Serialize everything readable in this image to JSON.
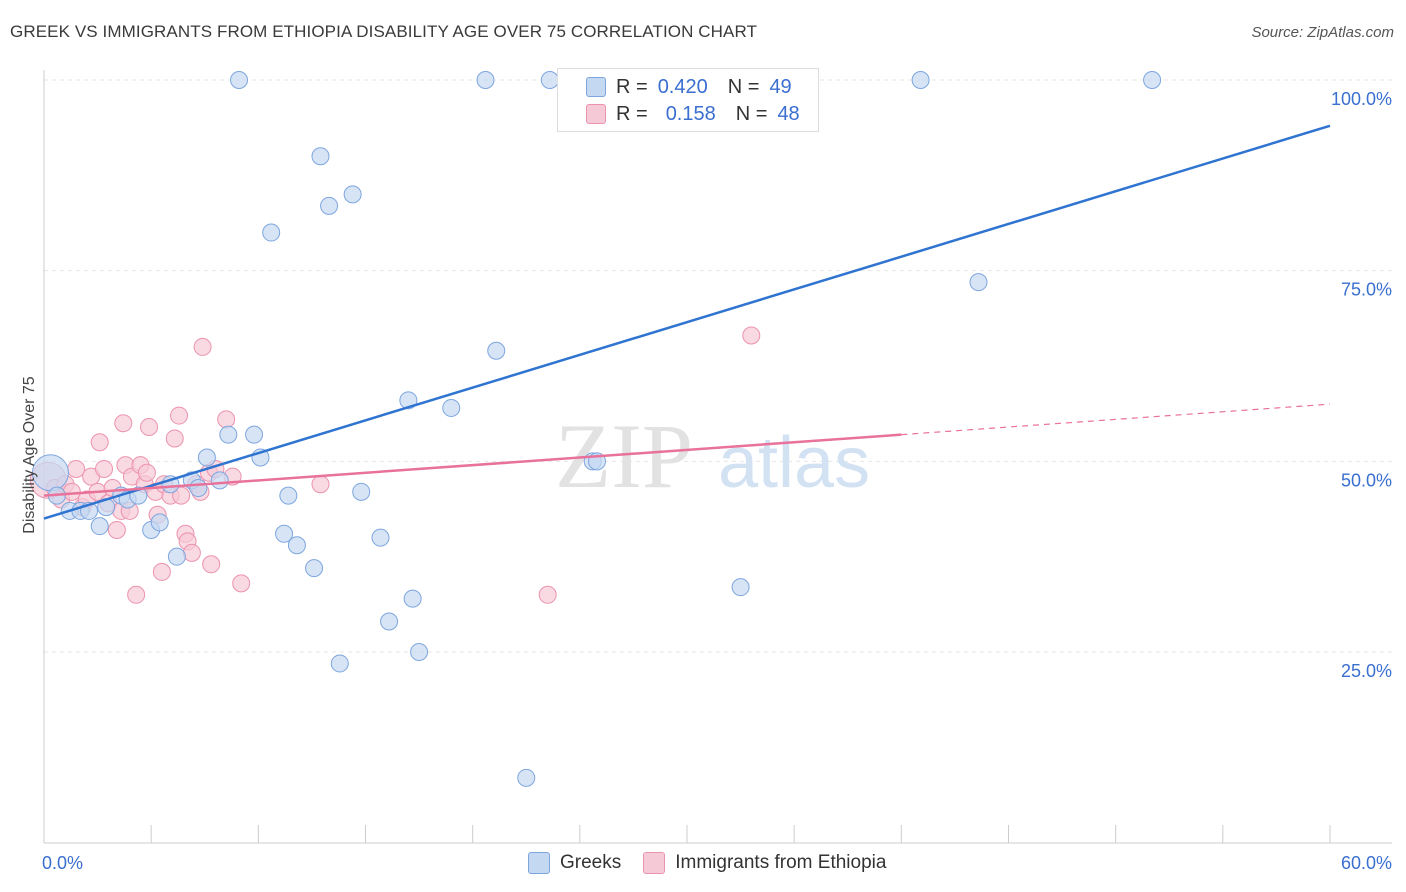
{
  "title": "GREEK VS IMMIGRANTS FROM ETHIOPIA DISABILITY AGE OVER 75 CORRELATION CHART",
  "source": "Source: ZipAtlas.com",
  "watermark": {
    "zip": "ZIP",
    "atlas": "atlas"
  },
  "colors": {
    "blue_fill": "#c5d8f2",
    "blue_stroke": "#7ea6de",
    "blue_line": "#2f74d0",
    "pink_fill": "#f6c9d6",
    "pink_stroke": "#ec93ae",
    "pink_line": "#e8729a",
    "axis_label": "#3a6fd0",
    "grid": "#e6e6e6"
  },
  "legend": {
    "greeks": {
      "r_label": "R =",
      "r_value": "0.420",
      "n_label": "N =",
      "n_value": "49"
    },
    "ethiopia": {
      "r_label": "R =",
      "r_value": "0.158",
      "n_label": "N =",
      "n_value": "48"
    }
  },
  "bottom_legend": {
    "greeks": "Greeks",
    "ethiopia": "Immigrants from Ethiopia"
  },
  "chart_data": {
    "type": "scatter",
    "title": "GREEK VS IMMIGRANTS FROM ETHIOPIA DISABILITY AGE OVER 75 CORRELATION CHART",
    "xlabel": "",
    "ylabel": "Disability Age Over 75",
    "xlim": [
      0,
      60
    ],
    "ylim": [
      0,
      105
    ],
    "x_tick_labels": [
      "0.0%",
      "60.0%"
    ],
    "y_ticks": [
      25,
      50,
      75,
      100
    ],
    "y_tick_labels": [
      "25.0%",
      "50.0%",
      "75.0%",
      "100.0%"
    ],
    "grid": true,
    "legend_position": "top-center",
    "series": [
      {
        "name": "Greeks",
        "r": 0.42,
        "n": 49,
        "trend": {
          "x": [
            0,
            60
          ],
          "y": [
            42.5,
            94.0
          ]
        },
        "points": [
          {
            "x": 0.3,
            "y": 48.5,
            "big": true
          },
          {
            "x": 0.6,
            "y": 45.5
          },
          {
            "x": 1.2,
            "y": 43.5
          },
          {
            "x": 1.7,
            "y": 43.5
          },
          {
            "x": 2.1,
            "y": 43.5
          },
          {
            "x": 2.6,
            "y": 41.5
          },
          {
            "x": 2.9,
            "y": 44.0
          },
          {
            "x": 3.6,
            "y": 45.5
          },
          {
            "x": 3.9,
            "y": 45.0
          },
          {
            "x": 4.4,
            "y": 45.5
          },
          {
            "x": 5.0,
            "y": 41.0
          },
          {
            "x": 5.4,
            "y": 42.0
          },
          {
            "x": 5.9,
            "y": 47.0
          },
          {
            "x": 6.2,
            "y": 37.5
          },
          {
            "x": 6.9,
            "y": 47.5
          },
          {
            "x": 7.2,
            "y": 46.5
          },
          {
            "x": 7.6,
            "y": 50.5
          },
          {
            "x": 8.2,
            "y": 47.5
          },
          {
            "x": 8.6,
            "y": 53.5
          },
          {
            "x": 9.1,
            "y": 100
          },
          {
            "x": 9.8,
            "y": 53.5
          },
          {
            "x": 10.1,
            "y": 50.5
          },
          {
            "x": 10.6,
            "y": 80.0
          },
          {
            "x": 11.4,
            "y": 45.5
          },
          {
            "x": 11.2,
            "y": 40.5
          },
          {
            "x": 11.8,
            "y": 39.0
          },
          {
            "x": 12.6,
            "y": 36.0
          },
          {
            "x": 12.9,
            "y": 90.0
          },
          {
            "x": 13.3,
            "y": 83.5
          },
          {
            "x": 13.8,
            "y": 23.5
          },
          {
            "x": 14.4,
            "y": 85.0
          },
          {
            "x": 14.8,
            "y": 46.0
          },
          {
            "x": 15.7,
            "y": 40.0
          },
          {
            "x": 16.1,
            "y": 29.0
          },
          {
            "x": 17.2,
            "y": 32.0
          },
          {
            "x": 17.5,
            "y": 25.0
          },
          {
            "x": 17.0,
            "y": 58.0
          },
          {
            "x": 19.0,
            "y": 57.0
          },
          {
            "x": 20.6,
            "y": 100
          },
          {
            "x": 21.1,
            "y": 64.5
          },
          {
            "x": 22.5,
            "y": 8.5
          },
          {
            "x": 23.6,
            "y": 100
          },
          {
            "x": 24.7,
            "y": 100
          },
          {
            "x": 25.6,
            "y": 50.0
          },
          {
            "x": 25.8,
            "y": 50.0
          },
          {
            "x": 32.5,
            "y": 33.5
          },
          {
            "x": 40.9,
            "y": 100
          },
          {
            "x": 43.6,
            "y": 73.5
          },
          {
            "x": 51.7,
            "y": 100
          }
        ]
      },
      {
        "name": "Immigrants from Ethiopia",
        "r": 0.158,
        "n": 48,
        "trend": {
          "x": [
            0,
            40
          ],
          "y": [
            45.5,
            53.5
          ]
        },
        "trend_dashed": {
          "x": [
            40,
            60
          ],
          "y": [
            53.5,
            57.5
          ]
        },
        "points": [
          {
            "x": 0.2,
            "y": 47.5,
            "big": true
          },
          {
            "x": 0.5,
            "y": 46.5
          },
          {
            "x": 0.8,
            "y": 45.0
          },
          {
            "x": 1.0,
            "y": 47.0
          },
          {
            "x": 1.3,
            "y": 46.0
          },
          {
            "x": 1.5,
            "y": 49.0
          },
          {
            "x": 1.8,
            "y": 44.0
          },
          {
            "x": 2.0,
            "y": 45.0
          },
          {
            "x": 2.2,
            "y": 48.0
          },
          {
            "x": 2.5,
            "y": 46.0
          },
          {
            "x": 2.6,
            "y": 52.5
          },
          {
            "x": 2.8,
            "y": 49.0
          },
          {
            "x": 3.0,
            "y": 44.5
          },
          {
            "x": 3.2,
            "y": 46.5
          },
          {
            "x": 3.4,
            "y": 41.0
          },
          {
            "x": 3.6,
            "y": 43.5
          },
          {
            "x": 3.7,
            "y": 55.0
          },
          {
            "x": 3.8,
            "y": 49.5
          },
          {
            "x": 4.0,
            "y": 43.5
          },
          {
            "x": 4.1,
            "y": 48.0
          },
          {
            "x": 4.3,
            "y": 32.5
          },
          {
            "x": 4.5,
            "y": 49.5
          },
          {
            "x": 4.7,
            "y": 47.0
          },
          {
            "x": 4.8,
            "y": 48.5
          },
          {
            "x": 4.9,
            "y": 54.5
          },
          {
            "x": 5.2,
            "y": 46.0
          },
          {
            "x": 5.3,
            "y": 43.0
          },
          {
            "x": 5.5,
            "y": 35.5
          },
          {
            "x": 5.6,
            "y": 47.0
          },
          {
            "x": 5.9,
            "y": 45.5
          },
          {
            "x": 6.1,
            "y": 53.0
          },
          {
            "x": 6.3,
            "y": 56.0
          },
          {
            "x": 6.4,
            "y": 45.5
          },
          {
            "x": 6.6,
            "y": 40.5
          },
          {
            "x": 6.7,
            "y": 39.5
          },
          {
            "x": 6.9,
            "y": 38.0
          },
          {
            "x": 7.1,
            "y": 47.0
          },
          {
            "x": 7.3,
            "y": 46.0
          },
          {
            "x": 7.4,
            "y": 65.0
          },
          {
            "x": 7.7,
            "y": 48.5
          },
          {
            "x": 7.8,
            "y": 36.5
          },
          {
            "x": 8.0,
            "y": 49.0
          },
          {
            "x": 8.5,
            "y": 55.5
          },
          {
            "x": 9.2,
            "y": 34.0
          },
          {
            "x": 12.9,
            "y": 47.0
          },
          {
            "x": 23.5,
            "y": 32.5
          },
          {
            "x": 33.0,
            "y": 66.5
          },
          {
            "x": 8.8,
            "y": 48.0
          }
        ]
      }
    ]
  }
}
